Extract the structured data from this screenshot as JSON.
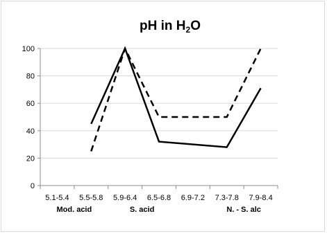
{
  "chart_data": {
    "type": "line",
    "title": {
      "prefix": "pH in H",
      "subscript": "2",
      "suffix": "O"
    },
    "categories": [
      "5.1-5.4",
      "5.5-5.8",
      "5.9-6.4",
      "6.5-6.8",
      "6.9-7.2",
      "7.3-7.8",
      "7.9-8.4"
    ],
    "category_groups": [
      {
        "label": "Mod. acid",
        "category_index": 0.5
      },
      {
        "label": "S. acid",
        "category_index": 2.5
      },
      {
        "label": "N. - S. alc",
        "category_index": 5.5
      }
    ],
    "ylim": [
      0,
      100
    ],
    "yticks": [
      0,
      20,
      40,
      60,
      80,
      100
    ],
    "grid": true,
    "legend": "none",
    "series": [
      {
        "style": "solid",
        "color": "#000000",
        "values": [
          null,
          45,
          100,
          32,
          null,
          28,
          71
        ]
      },
      {
        "style": "dashed",
        "color": "#000000",
        "values": [
          null,
          25,
          100,
          50,
          null,
          50,
          100
        ]
      }
    ],
    "colors": {
      "gridline": "#d9d9d9",
      "axis": "#8c8c8c"
    }
  }
}
